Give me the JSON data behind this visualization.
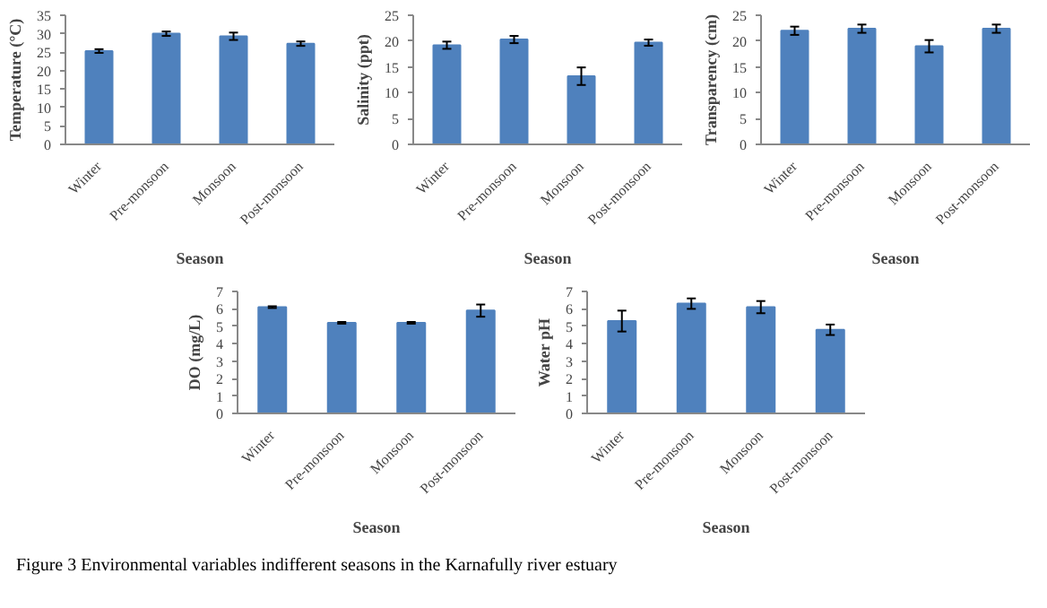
{
  "chart_data": [
    {
      "type": "bar",
      "categories": [
        "Winter",
        "Pre-monsoon",
        "Monsoon",
        "Post-monsoon"
      ],
      "values": [
        25.3,
        30,
        29.3,
        27.3
      ],
      "errors": [
        0.5,
        0.6,
        1,
        0.6
      ],
      "color": "#4f81bd",
      "xlabel": "Season",
      "ylabel": "Temperature (°C)",
      "ylim": [
        0,
        35
      ],
      "yticks": [
        0,
        5,
        10,
        15,
        20,
        25,
        30,
        35
      ],
      "grid": false
    },
    {
      "type": "bar",
      "categories": [
        "Winter",
        "Pre-monsoon",
        "Monsoon",
        "Post-monsoon"
      ],
      "values": [
        19.2,
        20.3,
        13.2,
        19.7
      ],
      "errors": [
        0.7,
        0.7,
        1.7,
        0.6
      ],
      "color": "#4f81bd",
      "xlabel": "Season",
      "ylabel": "Salinity (ppt)",
      "ylim": [
        0,
        25
      ],
      "yticks": [
        0,
        5,
        10,
        15,
        20,
        25
      ],
      "grid": false
    },
    {
      "type": "bar",
      "categories": [
        "Winter",
        "Pre-monsoon",
        "Monsoon",
        "Post-monsoon"
      ],
      "values": [
        22,
        22.4,
        19,
        22.4
      ],
      "errors": [
        0.8,
        0.8,
        1.2,
        0.8
      ],
      "color": "#4f81bd",
      "xlabel": "Season",
      "ylabel": "Transparency (cm)",
      "ylim": [
        0,
        25
      ],
      "yticks": [
        0,
        5,
        10,
        15,
        20,
        25
      ],
      "grid": false
    },
    {
      "type": "bar",
      "categories": [
        "Winter",
        "Pre-monsoon",
        "Monsoon",
        "Post-monsoon"
      ],
      "values": [
        6.1,
        5.2,
        5.2,
        5.9
      ],
      "errors": [
        0.05,
        0.05,
        0.05,
        0.35
      ],
      "color": "#4f81bd",
      "xlabel": "Season",
      "ylabel": "DO (mg/L)",
      "ylim": [
        0,
        7
      ],
      "yticks": [
        0,
        1,
        2,
        3,
        4,
        5,
        6,
        7
      ],
      "grid": false
    },
    {
      "type": "bar",
      "categories": [
        "Winter",
        "Pre-monsoon",
        "Monsoon",
        "Post-monsoon"
      ],
      "values": [
        5.3,
        6.3,
        6.1,
        4.8
      ],
      "errors": [
        0.6,
        0.3,
        0.35,
        0.3
      ],
      "color": "#4f81bd",
      "xlabel": "Season",
      "ylabel": "Water pH",
      "ylim": [
        0,
        7
      ],
      "yticks": [
        0,
        1,
        2,
        3,
        4,
        5,
        6,
        7
      ],
      "grid": false,
      "annotations": [
        "Figure 3 Environmental variables indifferent seasons in the Karnafully river estuary"
      ]
    }
  ]
}
